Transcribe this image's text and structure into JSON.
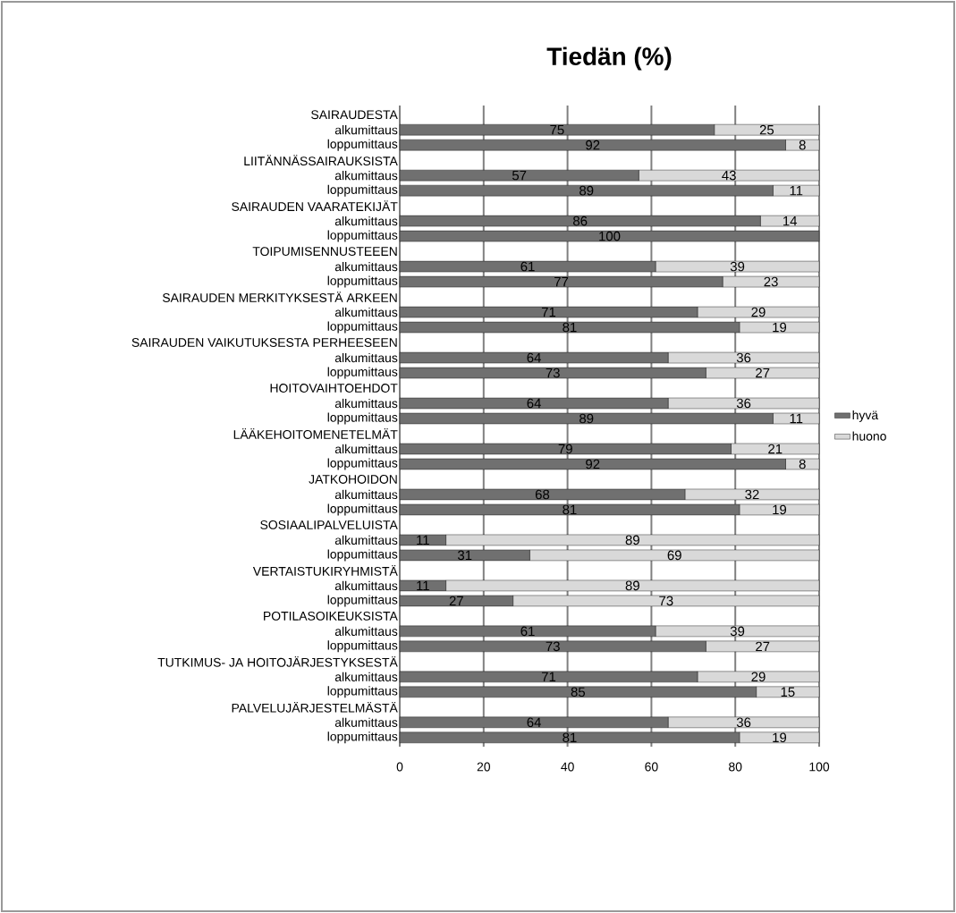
{
  "chart_data": {
    "type": "bar",
    "orientation": "horizontal",
    "stacked": true,
    "title": "**Tiedän (%)**",
    "categories": [
      "SAIRAUDESTA",
      "alkumittaus",
      "loppumittaus",
      "LIITÄNNÄSSAIRAUKSISTA",
      "alkumittaus",
      "loppumittaus",
      "SAIRAUDEN VAARATEKIJÄT",
      "alkumittaus",
      "loppumittaus",
      "TOIPUMISENNUSTEEEN",
      "alkumittaus",
      "loppumittaus",
      "SAIRAUDEN MERKITYKSESTÄ  ARKEEN",
      "alkumittaus",
      "loppumittaus",
      "SAIRAUDEN VAIKUTUKSESTA  PERHEESEEN",
      "alkumittaus",
      "loppumittaus",
      "HOITOVAIHTOEHDOT",
      "alkumittaus",
      "loppumittaus",
      "LÄÄKEHOITOMENETELMÄT",
      "alkumittaus",
      "loppumittaus",
      "JATKOHOIDON",
      "alkumittaus",
      "loppumittaus",
      "SOSIAALIPALVELUISTA",
      "alkumittaus",
      "loppumittaus",
      "VERTAISTUKIRYHMISTÄ",
      "alkumittaus",
      "loppumittaus",
      "POTILASOIKEUKSISTA",
      "alkumittaus",
      "loppumittaus",
      "TUTKIMUS-  JA HOITOJÄRJESTYKSESTÄ",
      "alkumittaus",
      "loppumittaus",
      "PALVELUJÄRJESTELMÄSTÄ",
      "alkumittaus",
      "loppumittaus"
    ],
    "series": [
      {
        "name": "hyvä",
        "color": "#707070",
        "values": [
          null,
          75,
          92,
          null,
          57,
          89,
          null,
          86,
          100,
          null,
          61,
          77,
          null,
          71,
          81,
          null,
          64,
          73,
          null,
          64,
          89,
          null,
          79,
          92,
          null,
          68,
          81,
          null,
          11,
          31,
          null,
          11,
          27,
          null,
          61,
          73,
          null,
          71,
          85,
          null,
          64,
          81
        ],
        "value_labels": [
          null,
          "75",
          "92",
          null,
          "57",
          "89",
          null,
          "86",
          "100",
          null,
          "61",
          "77",
          null,
          "71",
          "81",
          null,
          "64",
          "73",
          null,
          "64",
          "89",
          null,
          "79",
          "92",
          null,
          "68",
          "81",
          null,
          "11",
          "31",
          null,
          "11",
          "27",
          null,
          "61",
          "73",
          null,
          "71",
          "85",
          null,
          "64",
          "81"
        ]
      },
      {
        "name": "huono",
        "color": "#d9d9d9",
        "values": [
          null,
          25,
          8,
          null,
          43,
          11,
          null,
          14,
          0,
          null,
          39,
          23,
          null,
          29,
          19,
          null,
          36,
          27,
          null,
          36,
          11,
          null,
          21,
          8,
          null,
          32,
          19,
          null,
          89,
          69,
          null,
          89,
          73,
          null,
          39,
          27,
          null,
          29,
          15,
          null,
          36,
          19
        ],
        "value_labels": [
          null,
          "25",
          "8",
          null,
          "43",
          "11",
          null,
          "14",
          null,
          null,
          "39",
          "23",
          null,
          "29",
          "19",
          null,
          "36",
          "27",
          null,
          "36",
          "11",
          null,
          "21",
          "8",
          null,
          "32",
          "19",
          null,
          "89",
          "69",
          null,
          "89",
          "73",
          null,
          "39",
          "27",
          null,
          "29",
          "15",
          null,
          "36",
          "19"
        ]
      }
    ],
    "xlim": [
      0,
      100
    ],
    "xticks": [
      0,
      20,
      40,
      60,
      80,
      100
    ],
    "grid": "x",
    "legend": "right"
  }
}
